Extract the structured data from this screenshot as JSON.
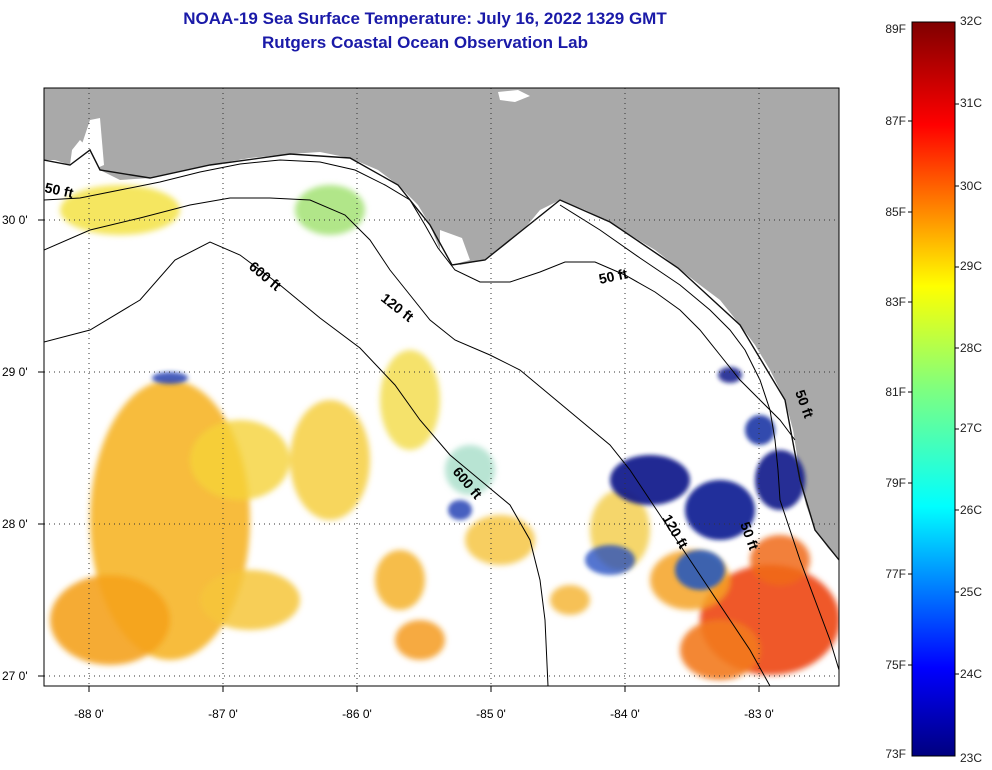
{
  "title": {
    "line1": "NOAA-19 Sea Surface Temperature:  July 16, 2022 1329 GMT",
    "line2": "Rutgers Coastal Ocean Observation Lab"
  },
  "map": {
    "lon_labels": [
      "-88 0'",
      "-87 0'",
      "-86 0'",
      "-85 0'",
      "-84 0'",
      "-83 0'"
    ],
    "lat_labels": [
      "30 0'",
      "29 0'",
      "28 0'",
      "27 0'"
    ],
    "contours": [
      "50 ft",
      "600 ft",
      "120 ft",
      "50 ft",
      "600 ft",
      "120 ft",
      "50 ft",
      "50 ft"
    ]
  },
  "colorbar": {
    "fahrenheit": [
      "89F",
      "87F",
      "85F",
      "83F",
      "81F",
      "79F",
      "77F",
      "75F",
      "73F"
    ],
    "celsius": [
      "32C",
      "31C",
      "30C",
      "29C",
      "28C",
      "27C",
      "26C",
      "25C",
      "24C",
      "23C"
    ]
  },
  "colors": {
    "title": "#1a1aa8",
    "land": "#a9a9a9",
    "warm": "#f4a21e",
    "hot": "#ee4a16",
    "cold": "#0a1a8a"
  }
}
